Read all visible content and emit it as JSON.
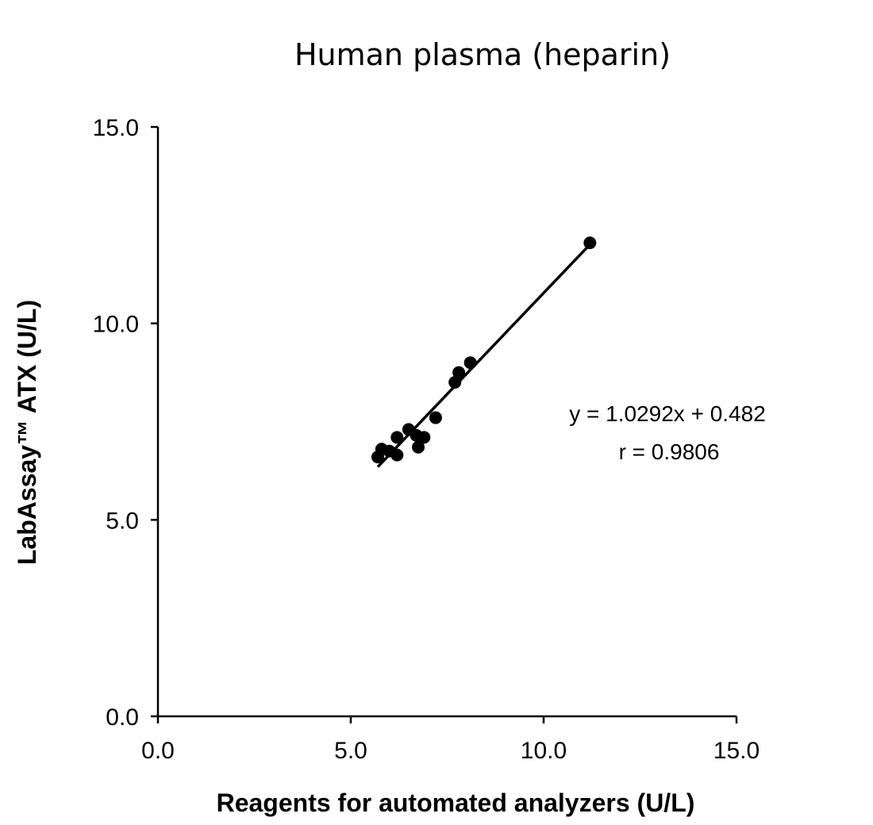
{
  "chart_data": {
    "type": "scatter",
    "title": "Human plasma (heparin)",
    "xlabel": "Reagents for automated analyzers (U/L)",
    "ylabel": "LabAssay™ ATX (U/L)",
    "xlim": [
      0,
      15
    ],
    "ylim": [
      0,
      15
    ],
    "xticks": [
      "0.0",
      "5.0",
      "10.0",
      "15.0"
    ],
    "yticks": [
      "0.0",
      "5.0",
      "10.0",
      "15.0"
    ],
    "grid": false,
    "series": [
      {
        "x": [
          5.7,
          5.8,
          6.0,
          6.2,
          6.2,
          6.5,
          6.7,
          6.75,
          6.9,
          7.2,
          7.7,
          7.8,
          8.1,
          11.2
        ],
        "y": [
          6.6,
          6.8,
          6.75,
          6.65,
          7.1,
          7.3,
          7.15,
          6.85,
          7.1,
          7.6,
          8.5,
          8.75,
          9.0,
          12.05
        ]
      }
    ],
    "trendline": {
      "slope": 1.0292,
      "intercept": 0.482,
      "x_range": [
        5.7,
        11.2
      ]
    },
    "annotations": [
      "y = 1.0292x + 0.482",
      "r = 0.9806"
    ]
  }
}
